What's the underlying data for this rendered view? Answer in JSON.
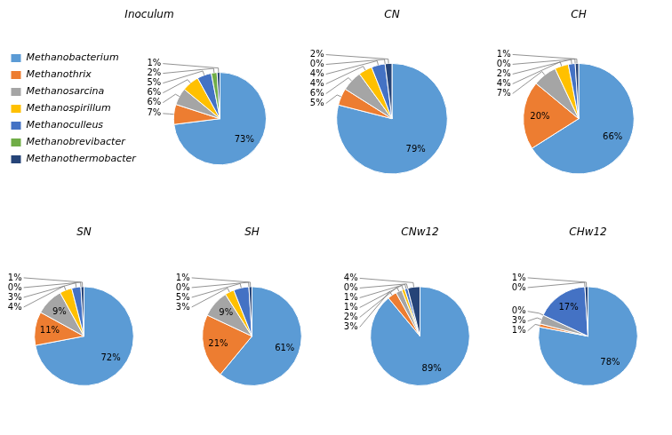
{
  "chart_data": [
    {
      "type": "pie",
      "title": "Inoculum",
      "categories": [
        "Methanobacterium",
        "Methanothrix",
        "Methanosarcina",
        "Methanospirillum",
        "Methanoculleus",
        "Methanobrevibacter",
        "Methanothermobacter"
      ],
      "values": [
        73,
        7,
        6,
        6,
        5,
        2,
        1
      ],
      "value_labels": [
        "73%",
        "7%",
        "6%",
        "6%",
        "5%",
        "2%",
        "1%"
      ],
      "colors": [
        "#5b9bd5",
        "#ed7d31",
        "#a5a5a5",
        "#ffc000",
        "#4472c4",
        "#70ad47",
        "#264478"
      ],
      "data_labels": true,
      "legend": "left"
    },
    {
      "type": "pie",
      "title": "CN",
      "categories": [
        "Methanobacterium",
        "Methanothrix",
        "Methanosarcina",
        "Methanospirillum",
        "Methanoculleus",
        "Methanobrevibacter",
        "Methanothermobacter"
      ],
      "values": [
        79,
        5,
        6,
        4,
        4,
        0,
        2
      ],
      "value_labels": [
        "79%",
        "5%",
        "6%",
        "4%",
        "4%",
        "0%",
        "2%"
      ],
      "colors": [
        "#5b9bd5",
        "#ed7d31",
        "#a5a5a5",
        "#ffc000",
        "#4472c4",
        "#70ad47",
        "#264478"
      ],
      "data_labels": true
    },
    {
      "type": "pie",
      "title": "CH",
      "categories": [
        "Methanobacterium",
        "Methanothrix",
        "Methanosarcina",
        "Methanospirillum",
        "Methanoculleus",
        "Methanobrevibacter",
        "Methanothermobacter"
      ],
      "values": [
        66,
        20,
        7,
        4,
        2,
        0,
        1
      ],
      "value_labels": [
        "66%",
        "20%",
        "7%",
        "4%",
        "2%",
        "0%",
        "1%"
      ],
      "colors": [
        "#5b9bd5",
        "#ed7d31",
        "#a5a5a5",
        "#ffc000",
        "#4472c4",
        "#70ad47",
        "#264478"
      ],
      "data_labels": true
    },
    {
      "type": "pie",
      "title": "SN",
      "categories": [
        "Methanobacterium",
        "Methanothrix",
        "Methanosarcina",
        "Methanospirillum",
        "Methanoculleus",
        "Methanobrevibacter",
        "Methanothermobacter"
      ],
      "values": [
        72,
        11,
        9,
        4,
        3,
        0,
        1
      ],
      "value_labels": [
        "72%",
        "11%",
        "9%",
        "4%",
        "3%",
        "0%",
        "1%"
      ],
      "colors": [
        "#5b9bd5",
        "#ed7d31",
        "#a5a5a5",
        "#ffc000",
        "#4472c4",
        "#70ad47",
        "#264478"
      ],
      "data_labels": true
    },
    {
      "type": "pie",
      "title": "SH",
      "categories": [
        "Methanobacterium",
        "Methanothrix",
        "Methanosarcina",
        "Methanospirillum",
        "Methanoculleus",
        "Methanobrevibacter",
        "Methanothermobacter"
      ],
      "values": [
        61,
        21,
        9,
        3,
        5,
        0,
        1
      ],
      "value_labels": [
        "61%",
        "21%",
        "9%",
        "3%",
        "5%",
        "0%",
        "1%"
      ],
      "colors": [
        "#5b9bd5",
        "#ed7d31",
        "#a5a5a5",
        "#ffc000",
        "#4472c4",
        "#70ad47",
        "#264478"
      ],
      "data_labels": true
    },
    {
      "type": "pie",
      "title": "CNw12",
      "categories": [
        "Methanobacterium",
        "Methanothrix",
        "Methanosarcina",
        "Methanospirillum",
        "Methanoculleus",
        "Methanobrevibacter",
        "Methanothermobacter"
      ],
      "values": [
        89,
        3,
        2,
        1,
        1,
        0,
        4
      ],
      "value_labels": [
        "89%",
        "3%",
        "2%",
        "1%",
        "1%",
        "0%",
        "4%"
      ],
      "colors": [
        "#5b9bd5",
        "#ed7d31",
        "#a5a5a5",
        "#ffc000",
        "#4472c4",
        "#70ad47",
        "#264478"
      ],
      "data_labels": true
    },
    {
      "type": "pie",
      "title": "CHw12",
      "categories": [
        "Methanobacterium",
        "Methanothrix",
        "Methanosarcina",
        "Methanospirillum",
        "Methanoculleus",
        "Methanobrevibacter",
        "Methanothermobacter"
      ],
      "values": [
        78,
        1,
        3,
        0,
        17,
        0,
        1
      ],
      "value_labels": [
        "78%",
        "1%",
        "3%",
        "0%",
        "17%",
        "0%",
        "1%"
      ],
      "colors": [
        "#5b9bd5",
        "#ed7d31",
        "#a5a5a5",
        "#ffc000",
        "#4472c4",
        "#70ad47",
        "#264478"
      ],
      "data_labels": true
    }
  ]
}
